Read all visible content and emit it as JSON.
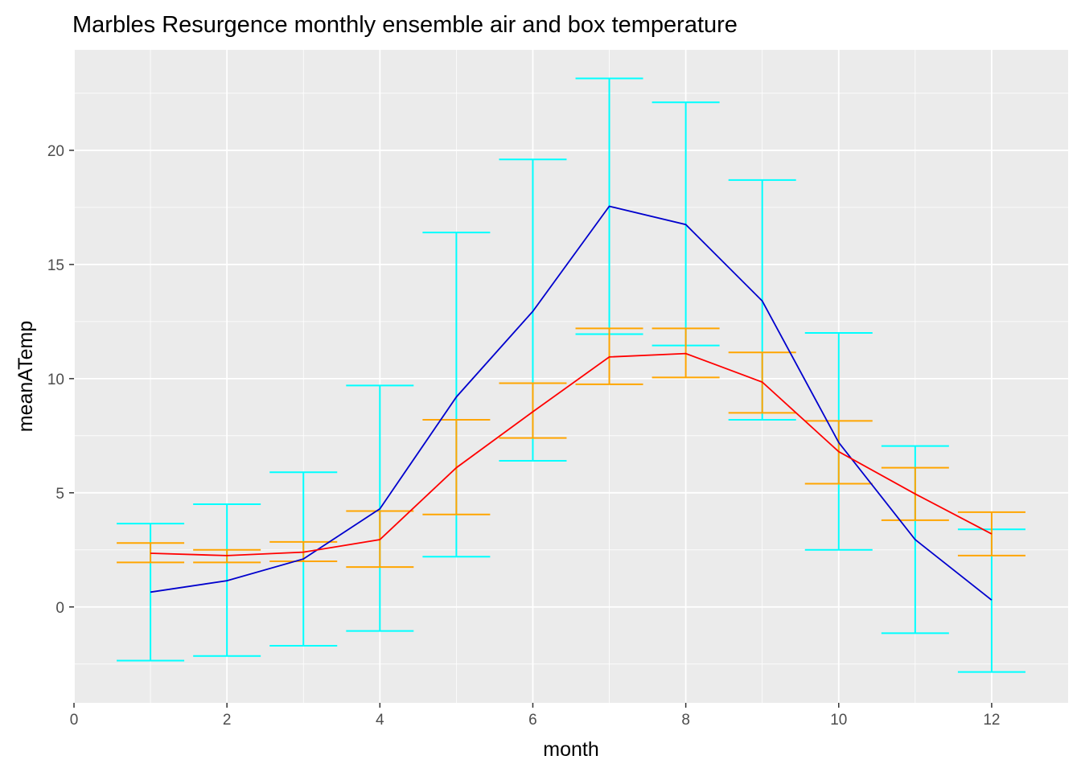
{
  "chart_data": {
    "type": "line",
    "title": "Marbles Resurgence monthly ensemble air and box temperature",
    "xlabel": "month",
    "ylabel": "meanATemp",
    "xlim": [
      0,
      13
    ],
    "ylim": [
      -4.2,
      24.4
    ],
    "x_ticks": [
      0,
      2,
      4,
      6,
      8,
      10,
      12
    ],
    "y_ticks": [
      0,
      5,
      10,
      15,
      20
    ],
    "grid": true,
    "legend": "none",
    "x": [
      1,
      2,
      3,
      4,
      5,
      6,
      7,
      8,
      9,
      10,
      11,
      12
    ],
    "series": [
      {
        "color": "#0000cd",
        "errorbar_color": "#00ffff",
        "values": [
          0.65,
          1.15,
          2.1,
          4.3,
          9.2,
          12.95,
          17.55,
          16.75,
          13.4,
          7.2,
          2.95,
          0.3
        ],
        "lower": [
          -2.35,
          -2.15,
          -1.7,
          -1.05,
          2.2,
          6.4,
          11.95,
          11.45,
          8.2,
          2.5,
          -1.15,
          -2.85
        ],
        "upper": [
          3.65,
          4.5,
          5.9,
          9.7,
          16.4,
          19.6,
          23.15,
          22.1,
          18.7,
          12.0,
          7.05,
          3.4
        ]
      },
      {
        "color": "#ff0000",
        "errorbar_color": "#ffa500",
        "values": [
          2.35,
          2.25,
          2.4,
          2.95,
          6.1,
          8.55,
          10.95,
          11.1,
          9.85,
          6.8,
          4.95,
          3.2
        ],
        "lower": [
          1.95,
          1.95,
          2.0,
          1.75,
          4.05,
          7.4,
          9.75,
          10.05,
          8.5,
          5.4,
          3.8,
          2.25
        ],
        "upper": [
          2.8,
          2.5,
          2.85,
          4.2,
          8.2,
          9.8,
          12.2,
          12.2,
          11.15,
          8.15,
          6.1,
          4.15
        ]
      }
    ]
  },
  "colors": {
    "panel_background": "#ebebeb",
    "grid_major": "#ffffff",
    "tick_text": "#4d4d4d"
  }
}
